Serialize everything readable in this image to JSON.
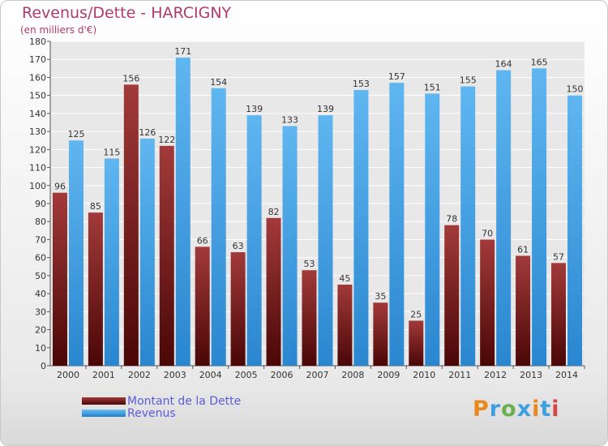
{
  "chart_data": {
    "type": "bar",
    "title": "Revenus/Dette - HARCIGNY",
    "subtitle": "(en milliers d'€)",
    "categories": [
      "2000",
      "2001",
      "2002",
      "2003",
      "2004",
      "2005",
      "2006",
      "2007",
      "2008",
      "2009",
      "2010",
      "2011",
      "2012",
      "2013",
      "2014"
    ],
    "series": [
      {
        "name": "Montant de la Dette",
        "values": [
          96,
          85,
          156,
          122,
          66,
          63,
          82,
          53,
          45,
          35,
          25,
          78,
          70,
          61,
          57
        ],
        "color": "#7a1a1a"
      },
      {
        "name": "Revenus",
        "values": [
          125,
          115,
          126,
          171,
          154,
          139,
          133,
          139,
          153,
          157,
          151,
          155,
          164,
          165,
          150
        ],
        "color": "#3d9ee0"
      }
    ],
    "ylim": [
      0,
      180
    ],
    "yticks": [
      0,
      10,
      20,
      30,
      40,
      50,
      60,
      70,
      80,
      90,
      100,
      110,
      120,
      130,
      140,
      150,
      160,
      170,
      180
    ],
    "grid": true,
    "legend_position": "bottom-left"
  },
  "brand": {
    "text": "Proxiti",
    "letter_colors": [
      "#e8891d",
      "#3d9ee0",
      "#6ab04c",
      "#3d9ee0",
      "#e8891d",
      "#3d9ee0",
      "#d64545"
    ]
  }
}
